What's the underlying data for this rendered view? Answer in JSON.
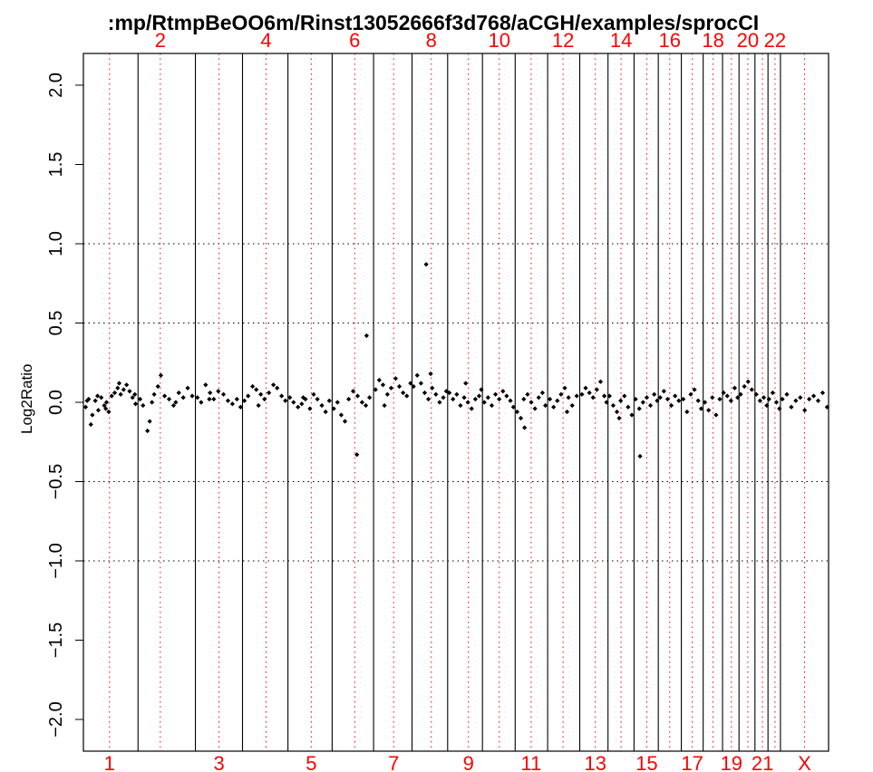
{
  "chart_data": {
    "type": "scatter",
    "title": ":mp/RtmpBeOO6m/Rinst13052666f3d768/aCGH/examples/sprocCI",
    "xlabel": "",
    "ylabel": "Log2Ratio",
    "ylim": [
      -2.2,
      2.2
    ],
    "yticks": [
      -2.0,
      -1.5,
      -1.0,
      -0.5,
      0.0,
      0.5,
      1.0,
      1.5,
      2.0
    ],
    "ytick_labels": [
      "−2.0",
      "−1.5",
      "−1.0",
      "−0.5",
      "0.0",
      "0.5",
      "1.0",
      "1.5",
      "2.0"
    ],
    "reference_lines": [
      -1.0,
      -0.5,
      0.5,
      1.0
    ],
    "grid": false,
    "chromosomes": [
      {
        "label": "1",
        "start": 0.0,
        "end": 7.33,
        "center": 3.5,
        "label_pos": "bottom"
      },
      {
        "label": "2",
        "start": 7.33,
        "end": 15.03,
        "center": 10.32,
        "label_pos": "top"
      },
      {
        "label": "3",
        "start": 15.03,
        "end": 21.35,
        "center": 18.2,
        "label_pos": "bottom"
      },
      {
        "label": "4",
        "start": 21.35,
        "end": 27.45,
        "center": 24.51,
        "label_pos": "top"
      },
      {
        "label": "5",
        "start": 27.45,
        "end": 33.38,
        "center": 30.58,
        "label_pos": "bottom"
      },
      {
        "label": "6",
        "start": 33.38,
        "end": 38.94,
        "center": 36.41,
        "label_pos": "top"
      },
      {
        "label": "7",
        "start": 38.94,
        "end": 44.1,
        "center": 41.63,
        "label_pos": "bottom"
      },
      {
        "label": "8",
        "start": 44.1,
        "end": 48.88,
        "center": 46.69,
        "label_pos": "top"
      },
      {
        "label": "9",
        "start": 48.88,
        "end": 53.55,
        "center": 51.67,
        "label_pos": "bottom"
      },
      {
        "label": "10",
        "start": 53.55,
        "end": 57.94,
        "center": 55.81,
        "label_pos": "top"
      },
      {
        "label": "11",
        "start": 57.94,
        "end": 62.3,
        "center": 60.09,
        "label_pos": "bottom"
      },
      {
        "label": "12",
        "start": 62.3,
        "end": 66.61,
        "center": 64.37,
        "label_pos": "top"
      },
      {
        "label": "13",
        "start": 66.61,
        "end": 70.4,
        "center": 68.7,
        "label_pos": "bottom"
      },
      {
        "label": "14",
        "start": 70.4,
        "end": 73.89,
        "center": 72.15,
        "label_pos": "top"
      },
      {
        "label": "15",
        "start": 73.89,
        "end": 77.15,
        "center": 75.6,
        "label_pos": "bottom"
      },
      {
        "label": "16",
        "start": 77.15,
        "end": 80.24,
        "center": 78.68,
        "label_pos": "top"
      },
      {
        "label": "17",
        "start": 80.24,
        "end": 83.17,
        "center": 81.71,
        "label_pos": "bottom"
      },
      {
        "label": "18",
        "start": 83.17,
        "end": 85.77,
        "center": 84.5,
        "label_pos": "top"
      },
      {
        "label": "19",
        "start": 85.77,
        "end": 87.98,
        "center": 86.96,
        "label_pos": "bottom"
      },
      {
        "label": "20",
        "start": 87.98,
        "end": 90.12,
        "center": 89.16,
        "label_pos": "top"
      },
      {
        "label": "21",
        "start": 90.12,
        "end": 91.87,
        "center": 91.13,
        "label_pos": "bottom"
      },
      {
        "label": "22",
        "start": 91.87,
        "end": 93.54,
        "center": 92.81,
        "label_pos": "top"
      },
      {
        "label": "X",
        "start": 93.54,
        "end": 100.0,
        "center": 96.77,
        "label_pos": "bottom"
      }
    ],
    "series": [
      {
        "name": "",
        "color": "#000000",
        "points": [
          [
            0.3,
            -0.03
          ],
          [
            0.7,
            0.02
          ],
          [
            1.2,
            -0.08
          ],
          [
            1.6,
            0.01
          ],
          [
            2.0,
            -0.05
          ],
          [
            2.4,
            0.03
          ],
          [
            2.8,
            -0.02
          ],
          [
            3.1,
            0.0
          ],
          [
            3.4,
            -0.06
          ],
          [
            3.8,
            0.04
          ],
          [
            4.2,
            0.06
          ],
          [
            4.6,
            0.09
          ],
          [
            5.0,
            0.05
          ],
          [
            5.4,
            0.08
          ],
          [
            5.8,
            0.11
          ],
          [
            6.2,
            0.07
          ],
          [
            6.6,
            0.03
          ],
          [
            7.0,
            -0.01
          ],
          [
            1.0,
            -0.14
          ],
          [
            4.8,
            0.12
          ],
          [
            0.5,
            0.01
          ],
          [
            1.9,
            0.04
          ],
          [
            3.0,
            -0.04
          ],
          [
            6.9,
            0.05
          ],
          [
            7.6,
            0.02
          ],
          [
            8.0,
            -0.02
          ],
          [
            8.6,
            -0.18
          ],
          [
            8.9,
            -0.12
          ],
          [
            9.5,
            0.05
          ],
          [
            10.0,
            0.1
          ],
          [
            10.4,
            0.17
          ],
          [
            10.9,
            0.04
          ],
          [
            11.5,
            0.02
          ],
          [
            12.1,
            -0.02
          ],
          [
            12.8,
            0.06
          ],
          [
            13.4,
            0.03
          ],
          [
            14.0,
            0.09
          ],
          [
            14.6,
            0.04
          ],
          [
            9.2,
            0.0
          ],
          [
            12.4,
            0.0
          ],
          [
            15.3,
            0.03
          ],
          [
            15.8,
            0.0
          ],
          [
            16.4,
            0.11
          ],
          [
            17.0,
            0.06
          ],
          [
            17.5,
            0.02
          ],
          [
            18.1,
            0.07
          ],
          [
            18.8,
            0.05
          ],
          [
            19.4,
            0.01
          ],
          [
            20.0,
            -0.01
          ],
          [
            20.6,
            0.02
          ],
          [
            21.1,
            -0.03
          ],
          [
            16.9,
            0.02
          ],
          [
            21.6,
            0.01
          ],
          [
            22.1,
            0.04
          ],
          [
            22.7,
            0.1
          ],
          [
            23.2,
            0.08
          ],
          [
            23.8,
            0.05
          ],
          [
            24.3,
            0.02
          ],
          [
            24.9,
            0.06
          ],
          [
            25.5,
            0.11
          ],
          [
            26.0,
            0.09
          ],
          [
            26.6,
            0.04
          ],
          [
            27.1,
            0.01
          ],
          [
            23.5,
            -0.02
          ],
          [
            27.7,
            0.03
          ],
          [
            28.2,
            0.0
          ],
          [
            28.8,
            -0.03
          ],
          [
            29.3,
            -0.01
          ],
          [
            29.8,
            0.02
          ],
          [
            30.4,
            -0.04
          ],
          [
            30.9,
            0.05
          ],
          [
            31.4,
            0.02
          ],
          [
            32.0,
            -0.02
          ],
          [
            32.5,
            -0.06
          ],
          [
            33.0,
            0.01
          ],
          [
            29.5,
            0.03
          ],
          [
            33.6,
            -0.04
          ],
          [
            34.1,
            0.0
          ],
          [
            34.6,
            -0.08
          ],
          [
            35.1,
            -0.12
          ],
          [
            35.6,
            0.02
          ],
          [
            36.2,
            0.07
          ],
          [
            36.8,
            0.04
          ],
          [
            37.4,
            0.0
          ],
          [
            37.9,
            -0.02
          ],
          [
            38.4,
            0.03
          ],
          [
            36.7,
            -0.33
          ],
          [
            38.0,
            0.42
          ],
          [
            39.2,
            0.08
          ],
          [
            39.7,
            0.14
          ],
          [
            40.2,
            0.11
          ],
          [
            40.8,
            0.05
          ],
          [
            41.3,
            0.09
          ],
          [
            41.9,
            0.15
          ],
          [
            42.4,
            0.1
          ],
          [
            42.9,
            0.06
          ],
          [
            43.4,
            0.04
          ],
          [
            43.9,
            0.12
          ],
          [
            40.4,
            -0.02
          ],
          [
            44.3,
            0.1
          ],
          [
            44.8,
            0.17
          ],
          [
            45.3,
            0.12
          ],
          [
            45.8,
            0.06
          ],
          [
            46.3,
            0.02
          ],
          [
            46.8,
            0.09
          ],
          [
            47.3,
            0.05
          ],
          [
            47.8,
            0.0
          ],
          [
            48.3,
            0.03
          ],
          [
            48.7,
            0.07
          ],
          [
            46.0,
            0.87
          ],
          [
            46.6,
            0.18
          ],
          [
            49.1,
            0.06
          ],
          [
            49.6,
            0.02
          ],
          [
            50.1,
            0.05
          ],
          [
            50.6,
            -0.02
          ],
          [
            51.1,
            0.03
          ],
          [
            51.6,
            0.0
          ],
          [
            52.1,
            -0.04
          ],
          [
            52.6,
            0.02
          ],
          [
            53.1,
            0.04
          ],
          [
            53.4,
            0.08
          ],
          [
            51.3,
            0.12
          ],
          [
            53.8,
            0.0
          ],
          [
            54.3,
            0.03
          ],
          [
            54.8,
            -0.02
          ],
          [
            55.3,
            0.05
          ],
          [
            55.8,
            0.02
          ],
          [
            56.3,
            0.07
          ],
          [
            56.8,
            0.04
          ],
          [
            57.3,
            0.01
          ],
          [
            57.7,
            -0.03
          ],
          [
            58.2,
            -0.06
          ],
          [
            58.7,
            -0.1
          ],
          [
            59.1,
            0.02
          ],
          [
            59.6,
            0.05
          ],
          [
            60.1,
            0.0
          ],
          [
            60.6,
            -0.04
          ],
          [
            61.1,
            0.03
          ],
          [
            61.6,
            0.06
          ],
          [
            62.0,
            -0.02
          ],
          [
            59.2,
            -0.16
          ],
          [
            62.6,
            0.02
          ],
          [
            63.1,
            -0.03
          ],
          [
            63.6,
            0.01
          ],
          [
            64.1,
            0.05
          ],
          [
            64.6,
            0.09
          ],
          [
            65.1,
            0.03
          ],
          [
            65.6,
            -0.02
          ],
          [
            66.2,
            0.04
          ],
          [
            64.9,
            -0.06
          ],
          [
            66.9,
            0.05
          ],
          [
            67.4,
            0.09
          ],
          [
            67.9,
            0.06
          ],
          [
            68.4,
            0.03
          ],
          [
            68.9,
            0.08
          ],
          [
            69.4,
            0.13
          ],
          [
            69.9,
            0.04
          ],
          [
            70.2,
            0.0
          ],
          [
            70.6,
            0.04
          ],
          [
            71.1,
            -0.02
          ],
          [
            71.6,
            -0.06
          ],
          [
            72.1,
            0.01
          ],
          [
            72.6,
            0.04
          ],
          [
            73.1,
            -0.03
          ],
          [
            73.6,
            -0.08
          ],
          [
            71.9,
            -0.1
          ],
          [
            74.1,
            0.02
          ],
          [
            74.6,
            -0.04
          ],
          [
            75.1,
            0.0
          ],
          [
            75.6,
            0.03
          ],
          [
            76.1,
            -0.02
          ],
          [
            76.6,
            0.05
          ],
          [
            77.0,
            0.01
          ],
          [
            74.7,
            -0.34
          ],
          [
            77.4,
            0.03
          ],
          [
            77.9,
            0.07
          ],
          [
            78.4,
            0.02
          ],
          [
            78.9,
            -0.02
          ],
          [
            79.4,
            0.04
          ],
          [
            79.9,
            0.01
          ],
          [
            80.5,
            0.02
          ],
          [
            81.0,
            -0.06
          ],
          [
            81.5,
            0.05
          ],
          [
            82.0,
            0.08
          ],
          [
            82.5,
            0.01
          ],
          [
            82.9,
            -0.04
          ],
          [
            83.4,
            0.0
          ],
          [
            83.9,
            -0.05
          ],
          [
            84.4,
            0.03
          ],
          [
            84.9,
            -0.08
          ],
          [
            85.4,
            0.02
          ],
          [
            85.9,
            0.06
          ],
          [
            86.4,
            0.04
          ],
          [
            86.9,
            0.01
          ],
          [
            87.4,
            0.09
          ],
          [
            87.8,
            0.03
          ],
          [
            88.2,
            0.05
          ],
          [
            88.7,
            0.1
          ],
          [
            89.2,
            0.13
          ],
          [
            89.7,
            0.08
          ],
          [
            90.3,
            0.05
          ],
          [
            90.8,
            0.01
          ],
          [
            91.3,
            0.03
          ],
          [
            91.7,
            -0.02
          ],
          [
            92.0,
            0.02
          ],
          [
            92.5,
            0.06
          ],
          [
            93.0,
            0.0
          ],
          [
            93.4,
            -0.04
          ],
          [
            93.8,
            0.02
          ],
          [
            94.4,
            0.05
          ],
          [
            95.0,
            -0.03
          ],
          [
            95.6,
            0.01
          ],
          [
            96.2,
            0.03
          ],
          [
            96.8,
            -0.05
          ],
          [
            97.4,
            0.02
          ],
          [
            98.0,
            0.04
          ],
          [
            98.6,
            0.01
          ],
          [
            99.2,
            0.06
          ],
          [
            99.8,
            -0.03
          ]
        ]
      }
    ]
  }
}
